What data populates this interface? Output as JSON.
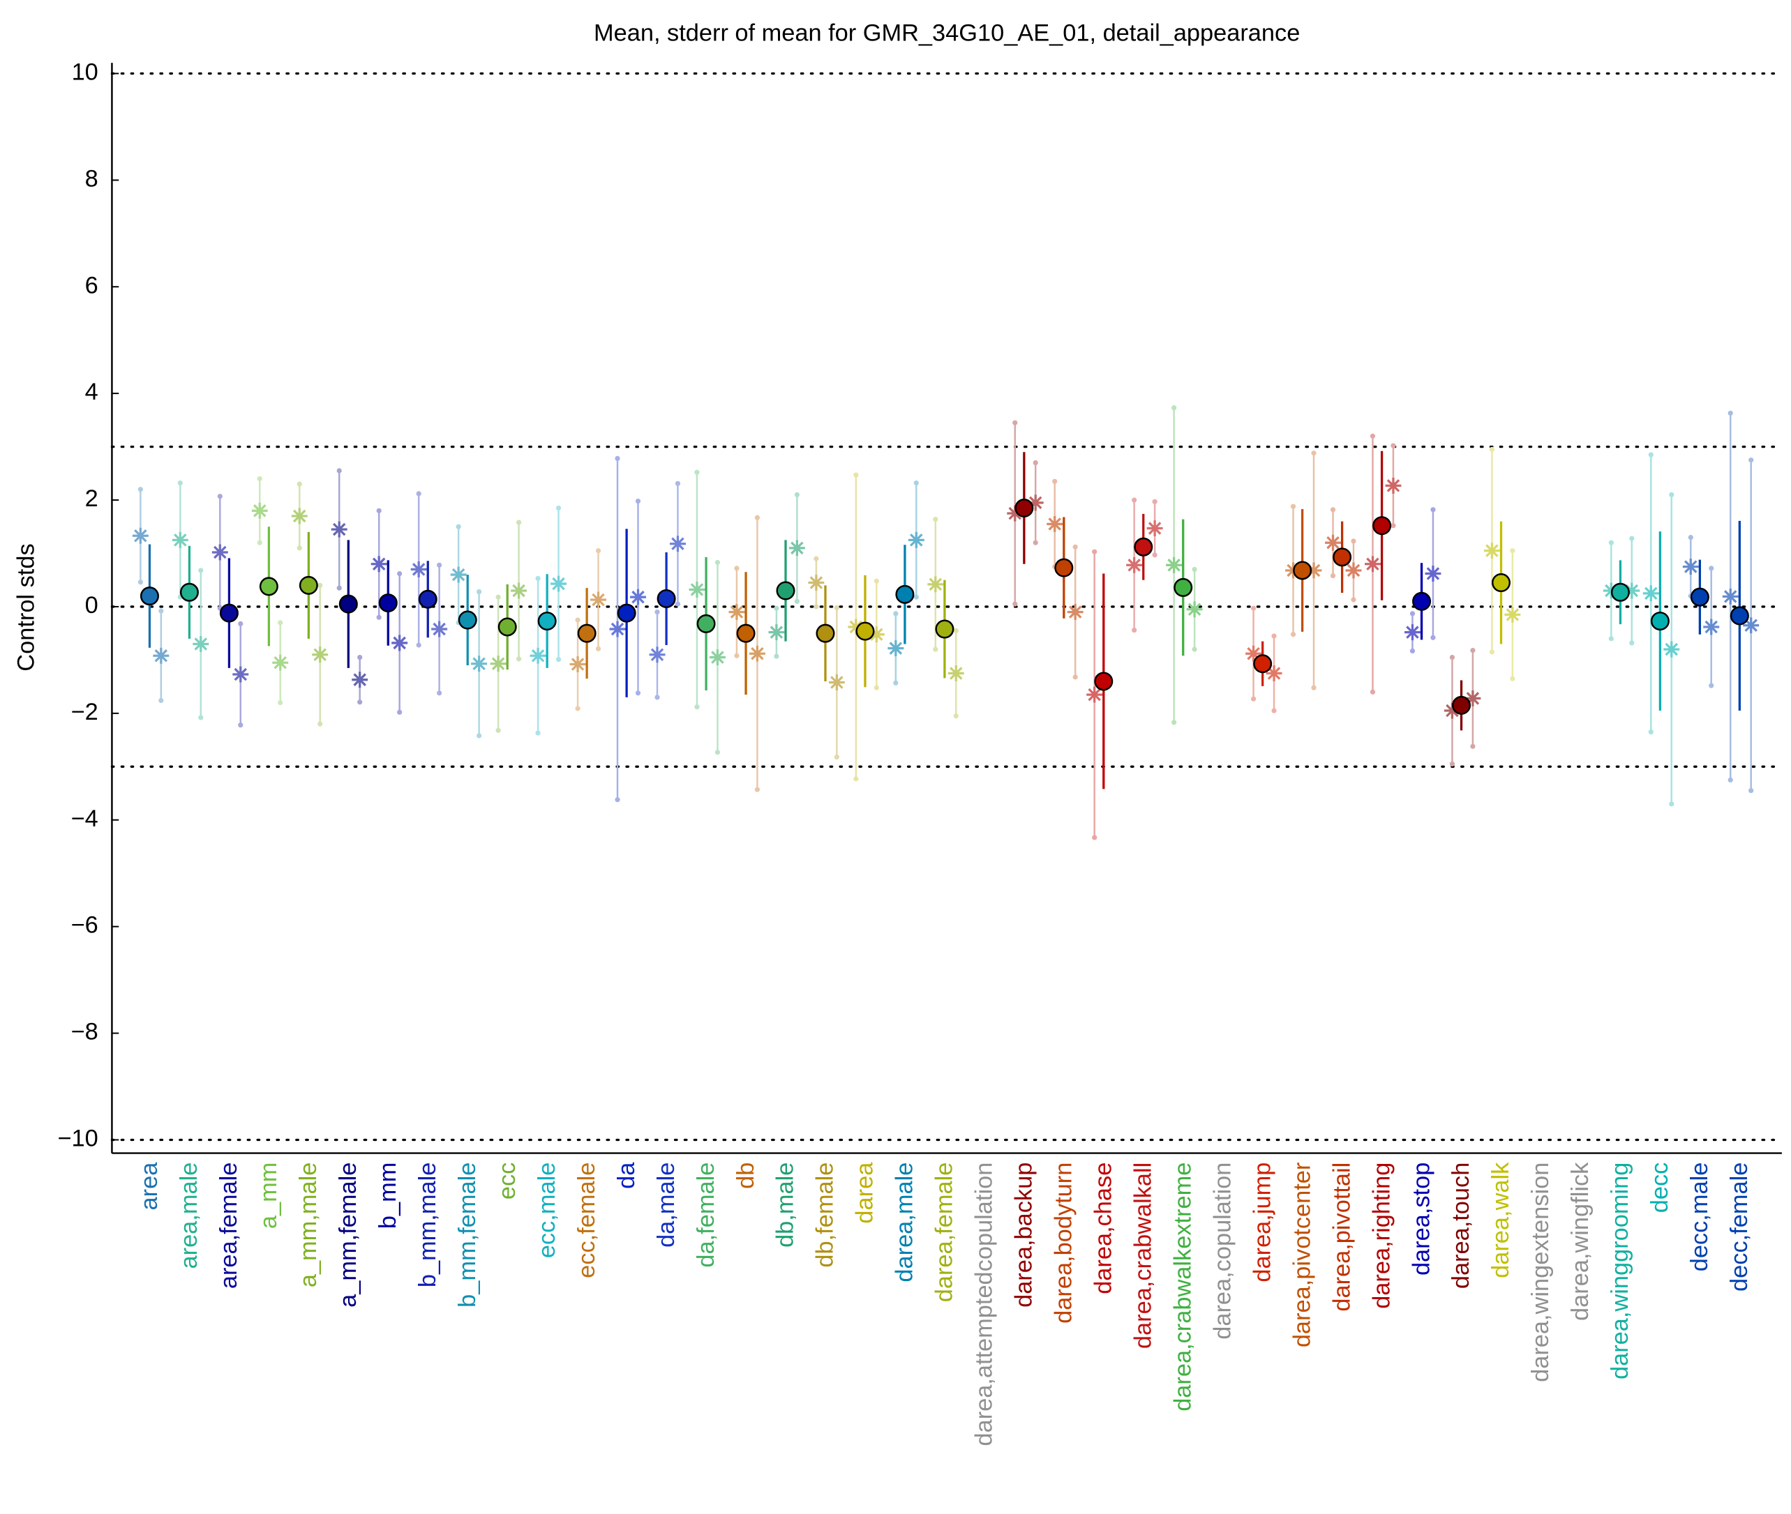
{
  "chart_data": {
    "type": "errorbar",
    "title": "Mean, stderr of mean for GMR_34G10_AE_01, detail_appearance",
    "y_label": "Control stds",
    "ylim": [
      -10.25,
      10.2
    ],
    "yticks": [
      {
        "value": -10,
        "label": "−10"
      },
      {
        "value": -8,
        "label": "−8"
      },
      {
        "value": -6,
        "label": "−6"
      },
      {
        "value": -4,
        "label": "−4"
      },
      {
        "value": -2,
        "label": "−2"
      },
      0,
      2,
      4,
      6,
      8,
      10
    ],
    "hlines": [
      10,
      3,
      0,
      -3,
      -10
    ],
    "categories": [
      "area",
      "area,male",
      "area,female",
      "a_mm",
      "a_mm,male",
      "a_mm,female",
      "b_mm",
      "b_mm,male",
      "b_mm,female",
      "ecc",
      "ecc,male",
      "ecc,female",
      "da",
      "da,male",
      "da,female",
      "db",
      "db,male",
      "db,female",
      "darea",
      "darea,male",
      "darea,female",
      "darea,attemptedcopulation",
      "darea,backup",
      "darea,bodyturn",
      "darea,chase",
      "darea,crabwalkall",
      "darea,crabwalkextreme",
      "darea,copulation",
      "darea,jump",
      "darea,pivotcenter",
      "darea,pivottail",
      "darea,righting",
      "darea,stop",
      "darea,touch",
      "darea,walk",
      "darea,wingextension",
      "darea,wingflick",
      "darea,winggrooming",
      "decc",
      "decc,male",
      "decc,female"
    ],
    "colors": [
      "#1a70b0",
      "#20b090",
      "#0a0a9a",
      "#70c040",
      "#80b020",
      "#000080",
      "#0000a0",
      "#1020b0",
      "#1090b0",
      "#70b030",
      "#10b0c0",
      "#c07010",
      "#0020c0",
      "#1030c0",
      "#40b060",
      "#c06000",
      "#20a070",
      "#b09010",
      "#c0b000",
      "#0080b0",
      "#a0b010",
      "#909090",
      "#900000",
      "#c04000",
      "#c00000",
      "#c01010",
      "#40b040",
      "#909090",
      "#d02000",
      "#c05000",
      "#c03000",
      "#b00000",
      "#0000b0",
      "#800000",
      "#c0c000",
      "#909090",
      "#909090",
      "#10b0a0",
      "#00b0b0",
      "#0040b0",
      "#0040b0"
    ],
    "series": [
      {
        "values": [
          0.2,
          0.27,
          -0.12,
          0.38,
          0.4,
          0.05,
          0.07,
          0.14,
          -0.25,
          -0.38,
          -0.27,
          -0.5,
          -0.12,
          0.15,
          -0.32,
          -0.5,
          0.3,
          -0.5,
          -0.46,
          0.23,
          -0.42,
          null,
          1.85,
          0.73,
          -1.4,
          1.12,
          0.36,
          null,
          -1.07,
          0.68,
          0.93,
          1.52,
          0.1,
          -1.85,
          0.45,
          null,
          null,
          0.27,
          -0.27,
          0.18,
          -0.17
        ],
        "errors": [
          0.97,
          0.87,
          1.03,
          1.12,
          1.0,
          1.2,
          0.8,
          0.72,
          0.85,
          0.8,
          0.88,
          0.85,
          1.58,
          0.87,
          1.25,
          1.15,
          0.95,
          0.9,
          1.05,
          0.93,
          0.92,
          null,
          1.05,
          0.95,
          2.02,
          0.62,
          1.28,
          null,
          0.42,
          1.15,
          0.67,
          1.4,
          0.72,
          0.47,
          1.15,
          null,
          null,
          0.6,
          1.68,
          0.7,
          1.78
        ]
      },
      {
        "values": [
          1.33,
          1.25,
          1.02,
          1.8,
          1.7,
          1.45,
          0.8,
          0.7,
          0.6,
          -1.07,
          -0.92,
          -1.08,
          -0.42,
          -0.9,
          0.32,
          -0.1,
          -0.48,
          0.45,
          -0.38,
          -0.78,
          0.42,
          null,
          1.75,
          1.55,
          -1.65,
          0.78,
          0.78,
          null,
          -0.88,
          0.68,
          1.2,
          0.8,
          -0.48,
          -1.95,
          1.05,
          null,
          null,
          0.3,
          0.25,
          0.75,
          0.19
        ],
        "errors": [
          0.87,
          1.07,
          1.05,
          0.6,
          0.6,
          1.1,
          1.0,
          1.42,
          0.9,
          1.25,
          1.45,
          0.83,
          3.2,
          0.8,
          2.2,
          0.82,
          0.45,
          0.45,
          2.85,
          0.65,
          1.22,
          null,
          1.7,
          0.8,
          2.68,
          1.22,
          2.95,
          null,
          0.85,
          1.2,
          0.62,
          2.4,
          0.35,
          1.0,
          1.9,
          null,
          null,
          0.9,
          2.6,
          0.55,
          3.44
        ]
      },
      {
        "values": [
          -0.92,
          -0.7,
          -1.27,
          -1.05,
          -0.9,
          -1.37,
          -0.68,
          -0.42,
          -1.07,
          0.3,
          0.43,
          0.13,
          0.18,
          1.18,
          -0.95,
          -0.88,
          1.1,
          -1.42,
          -0.52,
          1.25,
          -1.25,
          null,
          1.95,
          -0.1,
          null,
          1.47,
          -0.05,
          null,
          -1.25,
          0.68,
          0.68,
          2.27,
          0.62,
          -1.72,
          -0.15,
          null,
          null,
          0.3,
          -0.8,
          -0.38,
          -0.35
        ],
        "errors": [
          0.84,
          1.38,
          0.95,
          0.75,
          1.3,
          0.42,
          1.3,
          1.2,
          1.35,
          1.28,
          1.42,
          0.92,
          1.8,
          1.13,
          1.78,
          2.55,
          1.0,
          1.4,
          1.0,
          1.07,
          0.8,
          null,
          0.75,
          1.22,
          null,
          0.5,
          0.75,
          null,
          0.7,
          2.2,
          0.55,
          0.75,
          1.2,
          0.9,
          1.2,
          null,
          null,
          0.98,
          2.9,
          1.1,
          3.1
        ]
      }
    ]
  }
}
